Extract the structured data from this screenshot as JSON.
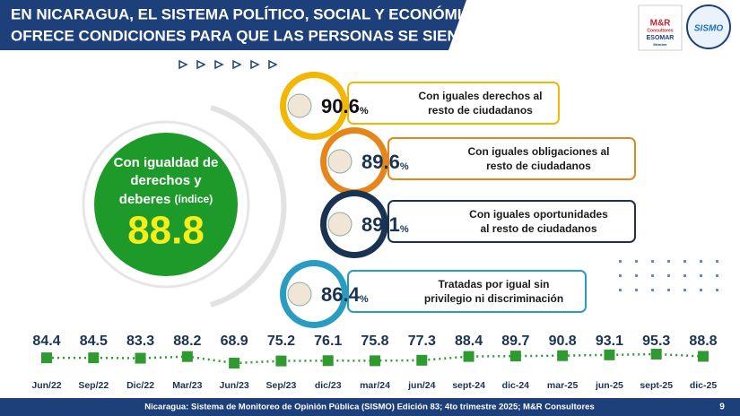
{
  "header": {
    "title_lines": [
      "EN NICARAGUA, EL SISTEMA POLÍTICO, SOCIAL Y ECONÓMICO",
      "OFRECE CONDICIONES PARA QUE LAS PERSONAS SE SIENTAN..."
    ],
    "logo1": [
      "M&R",
      "Consultores",
      "ESOMAR",
      "Member"
    ],
    "logo2": "SISMO"
  },
  "index": {
    "label_lines": [
      "Con igualdad de",
      "derechos y"
    ],
    "label_last": "deberes",
    "label_note": "(índice)",
    "value": 88.8
  },
  "items": [
    {
      "value": 90.6,
      "unit": "%",
      "label_lines": [
        "Con iguales derechos al",
        "resto de ciudadanos"
      ],
      "color": "#f2b705"
    },
    {
      "value": 89.6,
      "unit": "%",
      "label_lines": [
        "Con iguales obligaciones al",
        "resto de ciudadanos"
      ],
      "color": "#e5861c"
    },
    {
      "value": 89.1,
      "unit": "%",
      "label_lines": [
        "Con iguales oportunidades",
        "al resto de ciudadanos"
      ],
      "color": "#1b3353"
    },
    {
      "value": 86.4,
      "unit": "%",
      "label_lines": [
        "Tratadas por igual sin",
        "privilegio ni discriminación"
      ],
      "color": "#2a9cc2"
    }
  ],
  "chart_data": {
    "type": "line",
    "categories": [
      "Jun/22",
      "Sep/22",
      "Dic/22",
      "Mar/23",
      "Jun/23",
      "Sep/23",
      "dic/23",
      "mar/24",
      "jun/24",
      "sept-24",
      "dic-24",
      "mar-25",
      "jun-25",
      "sept-25",
      "dic-25"
    ],
    "values": [
      84.4,
      84.5,
      83.3,
      88.2,
      68.9,
      75.2,
      76.1,
      75.8,
      77.3,
      88.4,
      89.7,
      90.8,
      93.1,
      95.3,
      88.8
    ],
    "color": "#2f9a2f"
  },
  "footer": {
    "source": "Nicaragua: Sistema de Monitoreo de Opinión Pública (SISMO) Edición 83; 4to trimestre 2025; M&R Consultores",
    "page": 9
  }
}
